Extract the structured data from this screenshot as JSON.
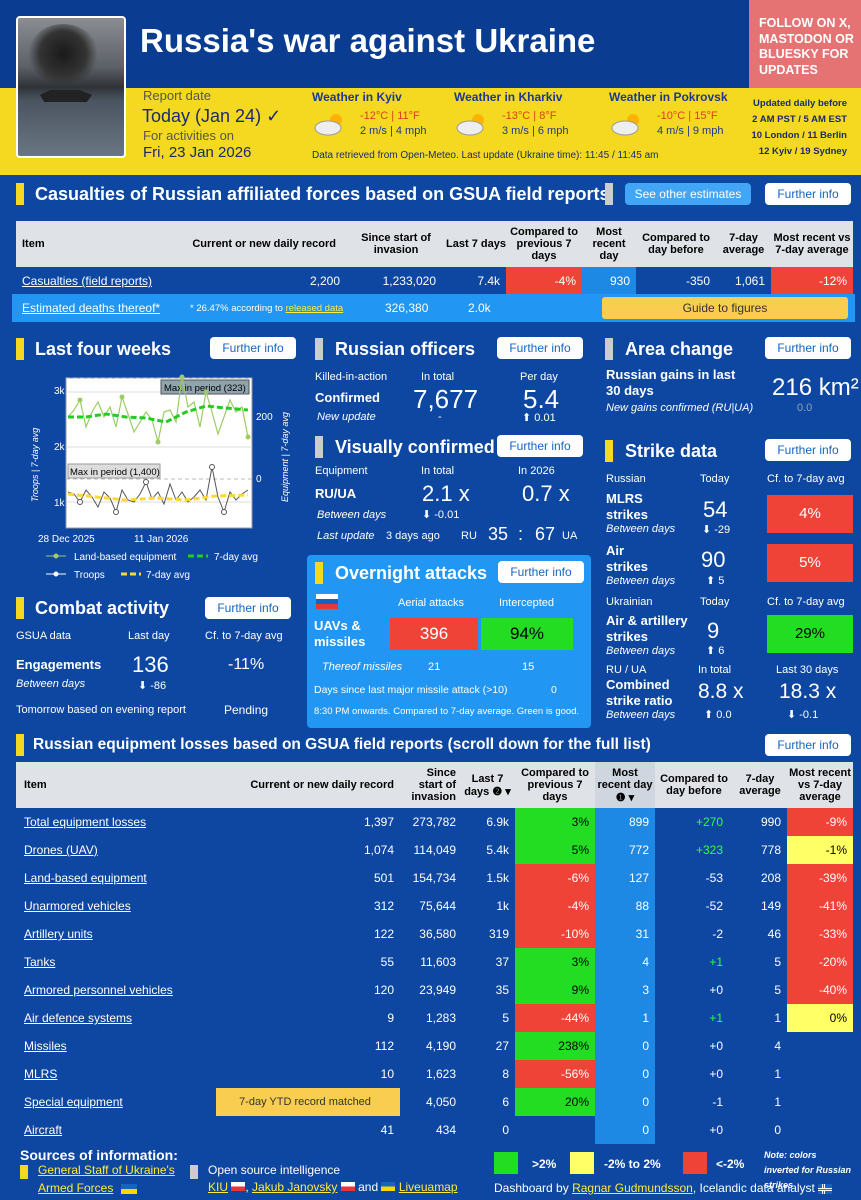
{
  "header": {
    "title": "Russia's war against Ukraine",
    "follow": "FOLLOW ON X, MASTODON OR BLUESKY FOR UPDATES",
    "report_date_label": "Report date",
    "report_date": "Today (Jan 24) ✓",
    "activities_label": "For activities on",
    "activities_date": "Fri, 23 Jan 2026",
    "weather": [
      {
        "title": "Weather in Kyiv",
        "temp": "-12°C | 11°F",
        "wind": "2 m/s | 4 mph"
      },
      {
        "title": "Weather in Kharkiv",
        "temp": "-13°C | 8°F",
        "wind": "3 m/s | 6 mph"
      },
      {
        "title": "Weather in Pokrovsk",
        "temp": "-10°C | 15°F",
        "wind": "4 m/s | 9 mph"
      }
    ],
    "weather_note": "Data retrieved from Open-Meteo. Last update (Ukraine time): 11:45 / 11:45 am",
    "updated": [
      "Updated daily before",
      "2 AM PST / 5 AM EST",
      "10 London / 11 Berlin",
      "12 Kyiv / 19 Sydney"
    ]
  },
  "casualties": {
    "title": "Casualties of Russian affiliated forces based on GSUA field reports",
    "other_btn": "See other estimates",
    "further": "Further info",
    "headers": [
      "Item",
      "Current or new daily record",
      "Since start of invasion",
      "Last 7 days",
      "Compared to previous 7 days",
      "Most recent day",
      "Compared to day before",
      "7-day average",
      "Most recent vs 7-day average"
    ],
    "row": [
      "Casualties (field reports)",
      "2,200",
      "1,233,020",
      "7.4k",
      "-4%",
      "930",
      "-350",
      "1,061",
      "-12%"
    ],
    "deaths_label": "Estimated deaths thereof*",
    "deaths_note": "* 26.47% according to",
    "deaths_link": "released data",
    "deaths_total": "326,380",
    "deaths_7": "2.0k",
    "guide": "Guide to figures"
  },
  "four_weeks": {
    "title": "Last four weeks",
    "further": "Further info",
    "max_top": "Max in period (323)",
    "max_bottom": "Max in period (1,400)",
    "y_left": [
      "3k",
      "2k",
      "1k"
    ],
    "y_right": [
      "200",
      "0"
    ],
    "x_labels": [
      "28 Dec 2025",
      "11 Jan 2026"
    ],
    "left_axis": "Troops | 7-day avg",
    "right_axis": "Equipment | 7-day avg",
    "legend": [
      "Land-based equipment",
      "7-day avg",
      "Troops",
      "7-day avg"
    ]
  },
  "officers": {
    "title": "Russian officers",
    "further": "Further info",
    "kia": "Killed-in-action",
    "in_total": "In total",
    "per_day": "Per day",
    "confirmed": "Confirmed",
    "total": "7,677",
    "perday": "5.4",
    "new_update": "New update",
    "dash": "-",
    "delta": "⬆ 0.01"
  },
  "visual": {
    "title": "Visually confirmed",
    "further": "Further info",
    "equipment": "Equipment",
    "in_total": "In total",
    "in_2026": "In 2026",
    "ruua": "RU/UA",
    "total": "2.1 x",
    "y2026": "0.7 x",
    "between": "Between days",
    "delta": "⬇ -0.01",
    "last_update": "Last update",
    "ago": "3 days ago",
    "ru": "RU",
    "ru_val": "35",
    "colon": ":",
    "ua_val": "67",
    "ua": "UA"
  },
  "area": {
    "title": "Area change",
    "further": "Further info",
    "gains": "Russian gains in last 30 days",
    "value": "216 km²",
    "confirmed": "New gains confirmed (RU|UA)",
    "zero": "0.0"
  },
  "strike": {
    "title": "Strike data",
    "further": "Further info",
    "russian": "Russian",
    "today": "Today",
    "cf": "Cf. to 7-day avg",
    "mlrs": "MLRS strikes",
    "mlrs_val": "54",
    "mlrs_d": "⬇ -29",
    "mlrs_pct": "4%",
    "air": "Air strikes",
    "air_val": "90",
    "air_d": "⬆ 5",
    "air_pct": "5%",
    "ukrainian": "Ukrainian",
    "art": "Air & artillery strikes",
    "art_val": "9",
    "art_d": "⬆ 6",
    "art_pct": "29%",
    "between": "Between days",
    "ruua": "RU / UA",
    "in_total": "In total",
    "last30": "Last 30 days",
    "combined": "Combined strike ratio",
    "ratio": "8.8 x",
    "ratio30": "18.3 x",
    "ratio_d": "⬆ 0.0",
    "ratio30_d": "⬇ -0.1"
  },
  "overnight": {
    "title": "Overnight attacks",
    "further": "Further info",
    "aerial": "Aerial attacks",
    "intercepted": "Intercepted",
    "uav": "UAVs & missiles",
    "val": "396",
    "pct": "94%",
    "thereof": "Thereof missiles",
    "missiles": "21",
    "missiles_i": "15",
    "days_since": "Days since last major missile attack (>10)",
    "days": "0",
    "note": "8:30 PM onwards. Compared to 7-day average. Green is good."
  },
  "combat": {
    "title": "Combat activity",
    "further": "Further info",
    "gsua": "GSUA data",
    "last_day": "Last day",
    "cf": "Cf. to 7-day avg",
    "engagements": "Engagements",
    "val": "136",
    "pct": "-11%",
    "between": "Between days",
    "delta": "⬇ -86",
    "tomorrow": "Tomorrow based on evening report",
    "pending": "Pending"
  },
  "equipment": {
    "title": "Russian equipment losses based on GSUA field reports (scroll down for the full list)",
    "further": "Further info",
    "headers": [
      "Item",
      "Current or new daily record",
      "Since start of invasion",
      "Last 7 days ❷ ▾",
      "Compared to previous 7 days",
      "Most recent day ❶ ▾",
      "Compared to day before",
      "7-day average",
      "Most recent vs 7-day average"
    ],
    "rows": [
      [
        "Total equipment losses",
        "1,397",
        "273,782",
        "6.9k",
        "3%",
        "899",
        "+270",
        "990",
        "-9%"
      ],
      [
        "Drones (UAV)",
        "1,074",
        "114,049",
        "5.4k",
        "5%",
        "772",
        "+323",
        "778",
        "-1%"
      ],
      [
        "Land-based equipment",
        "501",
        "154,734",
        "1.5k",
        "-6%",
        "127",
        "-53",
        "208",
        "-39%"
      ],
      [
        "Unarmored vehicles",
        "312",
        "75,644",
        "1k",
        "-4%",
        "88",
        "-52",
        "149",
        "-41%"
      ],
      [
        "Artillery units",
        "122",
        "36,580",
        "319",
        "-10%",
        "31",
        "-2",
        "46",
        "-33%"
      ],
      [
        "Tanks",
        "55",
        "11,603",
        "37",
        "3%",
        "4",
        "+1",
        "5",
        "-20%"
      ],
      [
        "Armored personnel vehicles",
        "120",
        "23,949",
        "35",
        "9%",
        "3",
        "+0",
        "5",
        "-40%"
      ],
      [
        "Air defence systems",
        "9",
        "1,283",
        "5",
        "-44%",
        "1",
        "+1",
        "1",
        "0%"
      ],
      [
        "Missiles",
        "112",
        "4,190",
        "27",
        "238%",
        "0",
        "+0",
        "4",
        ""
      ],
      [
        "MLRS",
        "10",
        "1,623",
        "8",
        "-56%",
        "0",
        "+0",
        "1",
        ""
      ],
      [
        "Special equipment",
        "7-day YTD record matched",
        "4,050",
        "6",
        "20%",
        "0",
        "-1",
        "1",
        ""
      ],
      [
        "Aircraft",
        "41",
        "434",
        "0",
        "",
        "0",
        "+0",
        "0",
        ""
      ]
    ]
  },
  "footer": {
    "sources": "Sources of information:",
    "gs": "General Staff of Ukraine's",
    "af": "Armed Forces",
    "osint": "Open source intelligence",
    "kiu": "KIU",
    "jj": "Jakub Janovsky",
    "and": "and",
    "lm": "Liveuamap",
    "leg1": ">2%",
    "leg2": "-2% to 2%",
    "leg3": "<-2%",
    "note": "Note: colors inverted for Russian strikes",
    "dash_by": "Dashboard by",
    "author": "Ragnar Gudmundsson",
    "role": ", Icelandic data analyst"
  }
}
